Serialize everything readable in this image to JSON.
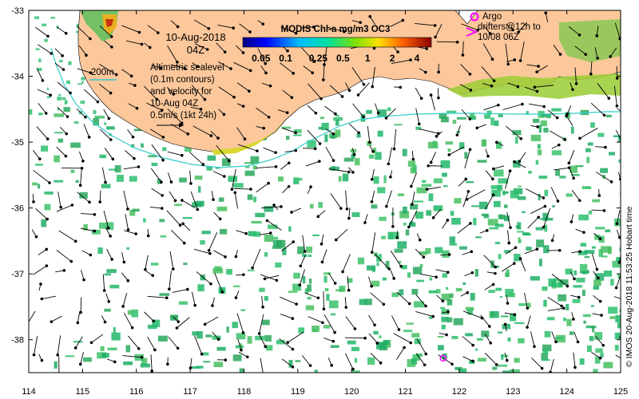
{
  "map": {
    "x_ticks": [
      "114",
      "115",
      "116",
      "117",
      "118",
      "119",
      "120",
      "121",
      "122",
      "123",
      "124",
      "125"
    ],
    "y_ticks": [
      "-33",
      "-34",
      "-35",
      "-36",
      "-37",
      "-38"
    ],
    "lon_range": [
      114,
      125
    ],
    "lat_range": [
      -38.5,
      -33
    ]
  },
  "date": {
    "line1": "10-Aug-2018",
    "line2": "04Z"
  },
  "colorbar": {
    "title": "MODIS Chl-a mg/m3 OC3",
    "ticks": [
      "0.05",
      "0.1",
      "0.25",
      "0.5",
      "1",
      "2",
      "4"
    ]
  },
  "isobath_label": "200m",
  "description": {
    "line1": "Altimetric sealevel",
    "line2": "(0.1m contours)",
    "line3": "and velocity for",
    "line4": "10-Aug 04Z",
    "line5": "0.5m/s (1kt 24h)"
  },
  "argo_legend": {
    "line1": "Argo",
    "line2": "drifters@12h to",
    "line3": "10/08 06Z"
  },
  "credit": "© IMOS 20-Aug-2018 11:53:25 Hobart time",
  "colors": {
    "land": "#FBC79B",
    "argo": "#FF00FF",
    "isobath": "#33CCCC",
    "chl_ocean": "#22B86A"
  },
  "markers": {
    "argo_float": {
      "lon": 121.7,
      "lat": -38.28
    }
  }
}
